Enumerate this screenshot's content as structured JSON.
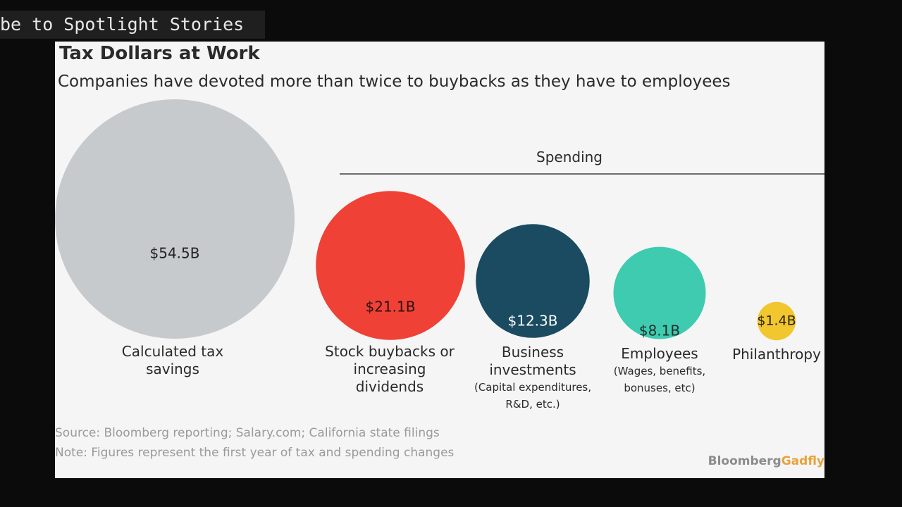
{
  "banner": {
    "text": "be to Spotlight Stories"
  },
  "chart_data": {
    "type": "bubble",
    "title": "Tax Dollars at Work",
    "subtitle": "Companies have devoted more than twice to buybacks as they have to employees",
    "group_label": "Spending",
    "units": "$B",
    "items": [
      {
        "label": "Calculated tax savings",
        "value": 54.5,
        "value_label": "$54.5B",
        "sublabel": "",
        "color": "#c7cacd",
        "text_color": "#222222"
      },
      {
        "label": "Stock buybacks or increasing dividends",
        "value": 21.1,
        "value_label": "$21.1B",
        "sublabel": "",
        "color": "#ef4135",
        "text_color": "#2a1010"
      },
      {
        "label": "Business investments",
        "value": 12.3,
        "value_label": "$12.3B",
        "sublabel": "(Capital expenditures, R&D, etc.)",
        "color": "#1a4b61",
        "text_color": "#ffffff"
      },
      {
        "label": "Employees",
        "value": 8.1,
        "value_label": "$8.1B",
        "sublabel": "(Wages, benefits, bonuses, etc)",
        "color": "#3ecbb0",
        "text_color": "#1f2f2a"
      },
      {
        "label": "Philanthropy",
        "value": 1.4,
        "value_label": "$1.4B",
        "sublabel": "",
        "color": "#f2c62f",
        "text_color": "#2a2410"
      }
    ]
  },
  "source": "Source: Bloomberg reporting; Salary.com; California state filings",
  "note": "Note: Figures represent the first year of tax and spending changes",
  "brand": {
    "part1": "Bloomberg",
    "part2": "Gadfly"
  }
}
